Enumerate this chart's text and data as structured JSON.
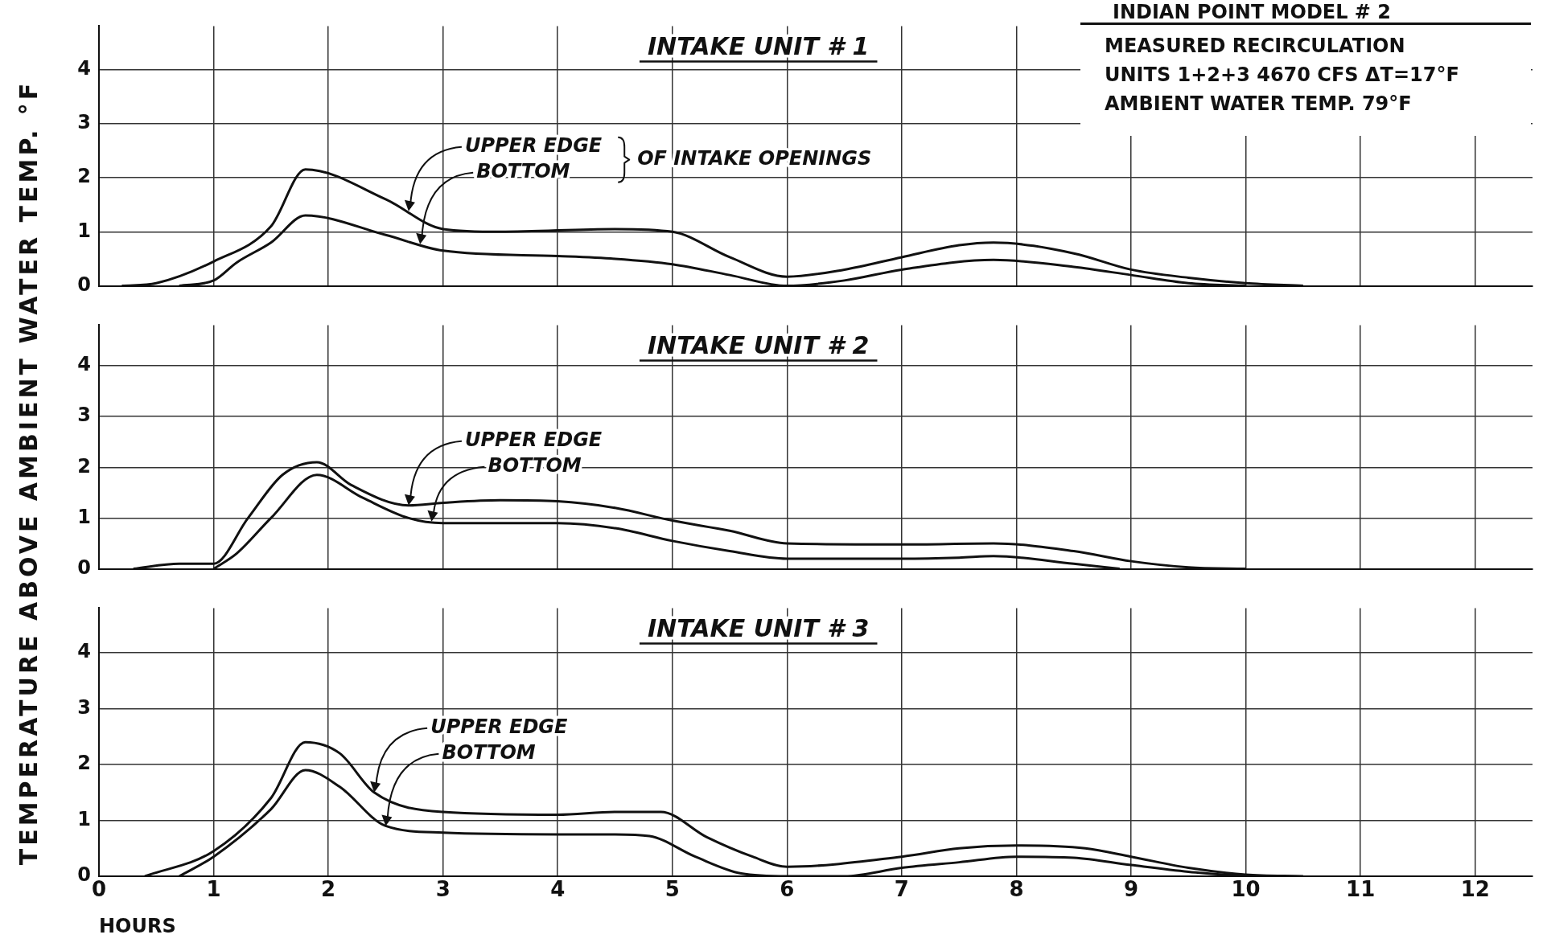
{
  "chart_data": [
    {
      "type": "line",
      "title": "INTAKE UNIT # 1",
      "subtitle": "INDIAN POINT MODEL # 2",
      "marker": "none",
      "grid": true,
      "tick_labels": "y",
      "xlim": [
        0,
        12.5
      ],
      "ylim": [
        0,
        4.8
      ],
      "xticks": [
        0,
        1,
        2,
        3,
        4,
        5,
        6,
        7,
        8,
        9,
        10,
        11,
        12
      ],
      "yticks": [
        0,
        1,
        2,
        3,
        4
      ],
      "annotations": [
        {
          "text": "UPPER EDGE",
          "x": 2.7,
          "y": 1.38
        },
        {
          "text": "BOTTOM",
          "x": 2.8,
          "y": 0.77
        },
        "OF INTAKE OPENINGS",
        "MEASURED RECIRCULATION",
        "UNITS 1+2+3 4670 CFS ΔT=17°F",
        "AMBIENT WATER TEMP. 79°F"
      ],
      "series": [
        {
          "color": "#111111",
          "x": [
            0.2,
            0.5,
            1,
            1.5,
            1.8,
            2.5,
            3,
            3.5,
            4.5,
            5,
            5.5,
            6,
            6.5,
            7,
            7.5,
            7.8,
            8.5,
            9,
            9.5,
            10,
            10.5
          ],
          "values": [
            0,
            0.05,
            0.45,
            1.1,
            2.15,
            1.6,
            1.05,
            1,
            1.05,
            1,
            0.53,
            0.17,
            0.3,
            0.53,
            0.75,
            0.8,
            0.6,
            0.3,
            0.15,
            0.05,
            0
          ]
        },
        {
          "color": "#111111",
          "x": [
            0.7,
            1,
            1.2,
            1.5,
            1.8,
            2.5,
            3,
            4,
            4.5,
            5,
            5.5,
            6,
            6.5,
            7,
            7.8,
            8.5,
            9,
            9.5,
            10
          ],
          "values": [
            0,
            0.1,
            0.43,
            0.8,
            1.3,
            0.94,
            0.65,
            0.55,
            0.5,
            0.4,
            0.2,
            0,
            0.1,
            0.3,
            0.48,
            0.35,
            0.2,
            0.05,
            0
          ]
        }
      ]
    },
    {
      "type": "line",
      "title": "INTAKE UNIT # 2",
      "ylabel": "TEMPERATURE ABOVE AMBIENT WATER TEMP. °F",
      "marker": "none",
      "grid": true,
      "tick_labels": "y",
      "xlim": [
        0,
        12.5
      ],
      "ylim": [
        0,
        4.8
      ],
      "xticks": [
        0,
        1,
        2,
        3,
        4,
        5,
        6,
        7,
        8,
        9,
        10,
        11,
        12
      ],
      "yticks": [
        0,
        1,
        2,
        3,
        4
      ],
      "annotations": [
        {
          "text": "UPPER EDGE",
          "x": 2.7,
          "y": 1.25
        },
        {
          "text": "BOTTOM",
          "x": 2.9,
          "y": 0.93
        }
      ],
      "series": [
        {
          "color": "#111111",
          "x": [
            0.3,
            0.7,
            1,
            1.3,
            1.6,
            1.9,
            2.2,
            2.7,
            3,
            3.5,
            4,
            4.5,
            5,
            5.5,
            6,
            7,
            7.8,
            8.5,
            9,
            9.5,
            10
          ],
          "values": [
            0,
            0.1,
            0.1,
            1,
            1.85,
            2.1,
            1.65,
            1.25,
            1.3,
            1.35,
            1.33,
            1.2,
            0.95,
            0.75,
            0.5,
            0.48,
            0.5,
            0.35,
            0.15,
            0.03,
            0
          ]
        },
        {
          "color": "#111111",
          "x": [
            1,
            1.2,
            1.5,
            1.9,
            2.3,
            2.7,
            3,
            4,
            4.5,
            5,
            5.5,
            6,
            7,
            7.5,
            7.8,
            8.5,
            8.9
          ],
          "values": [
            0,
            0.3,
            1,
            1.85,
            1.4,
            1,
            0.9,
            0.9,
            0.8,
            0.55,
            0.35,
            0.2,
            0.2,
            0.22,
            0.25,
            0.1,
            0
          ]
        }
      ]
    },
    {
      "type": "line",
      "title": "INTAKE UNIT # 3",
      "xlabel": "HOURS",
      "marker": "none",
      "grid": true,
      "xlim": [
        0,
        12.5
      ],
      "ylim": [
        0,
        4.8
      ],
      "xticks": [
        0,
        1,
        2,
        3,
        4,
        5,
        6,
        7,
        8,
        9,
        10,
        11,
        12
      ],
      "yticks": [
        0,
        1,
        2,
        3,
        4
      ],
      "annotations": [
        {
          "text": "UPPER EDGE",
          "x": 2.4,
          "y": 1.5
        },
        {
          "text": "BOTTOM",
          "x": 2.5,
          "y": 0.9
        }
      ],
      "series": [
        {
          "color": "#111111",
          "x": [
            0.4,
            1,
            1.5,
            1.8,
            2.1,
            2.4,
            3,
            4,
            4.5,
            4.9,
            5.3,
            5.7,
            6,
            7,
            7.5,
            8,
            8.6,
            9,
            9.5,
            10,
            10.5
          ],
          "values": [
            0,
            0.45,
            1.4,
            2.4,
            2.2,
            1.5,
            1.15,
            1.1,
            1.15,
            1.15,
            0.7,
            0.35,
            0.17,
            0.35,
            0.5,
            0.55,
            0.5,
            0.35,
            0.15,
            0.03,
            0
          ]
        },
        {
          "color": "#111111",
          "x": [
            0.7,
            1,
            1.5,
            1.8,
            2.1,
            2.5,
            3,
            4,
            4.5,
            4.8,
            5.2,
            5.6,
            6,
            6.5,
            7,
            7.5,
            8,
            8.5,
            9,
            9.5,
            10
          ],
          "values": [
            0,
            0.35,
            1.2,
            1.9,
            1.6,
            0.9,
            0.78,
            0.75,
            0.75,
            0.72,
            0.35,
            0.05,
            0,
            0,
            0.15,
            0.25,
            0.35,
            0.33,
            0.2,
            0.08,
            0
          ]
        }
      ]
    }
  ]
}
